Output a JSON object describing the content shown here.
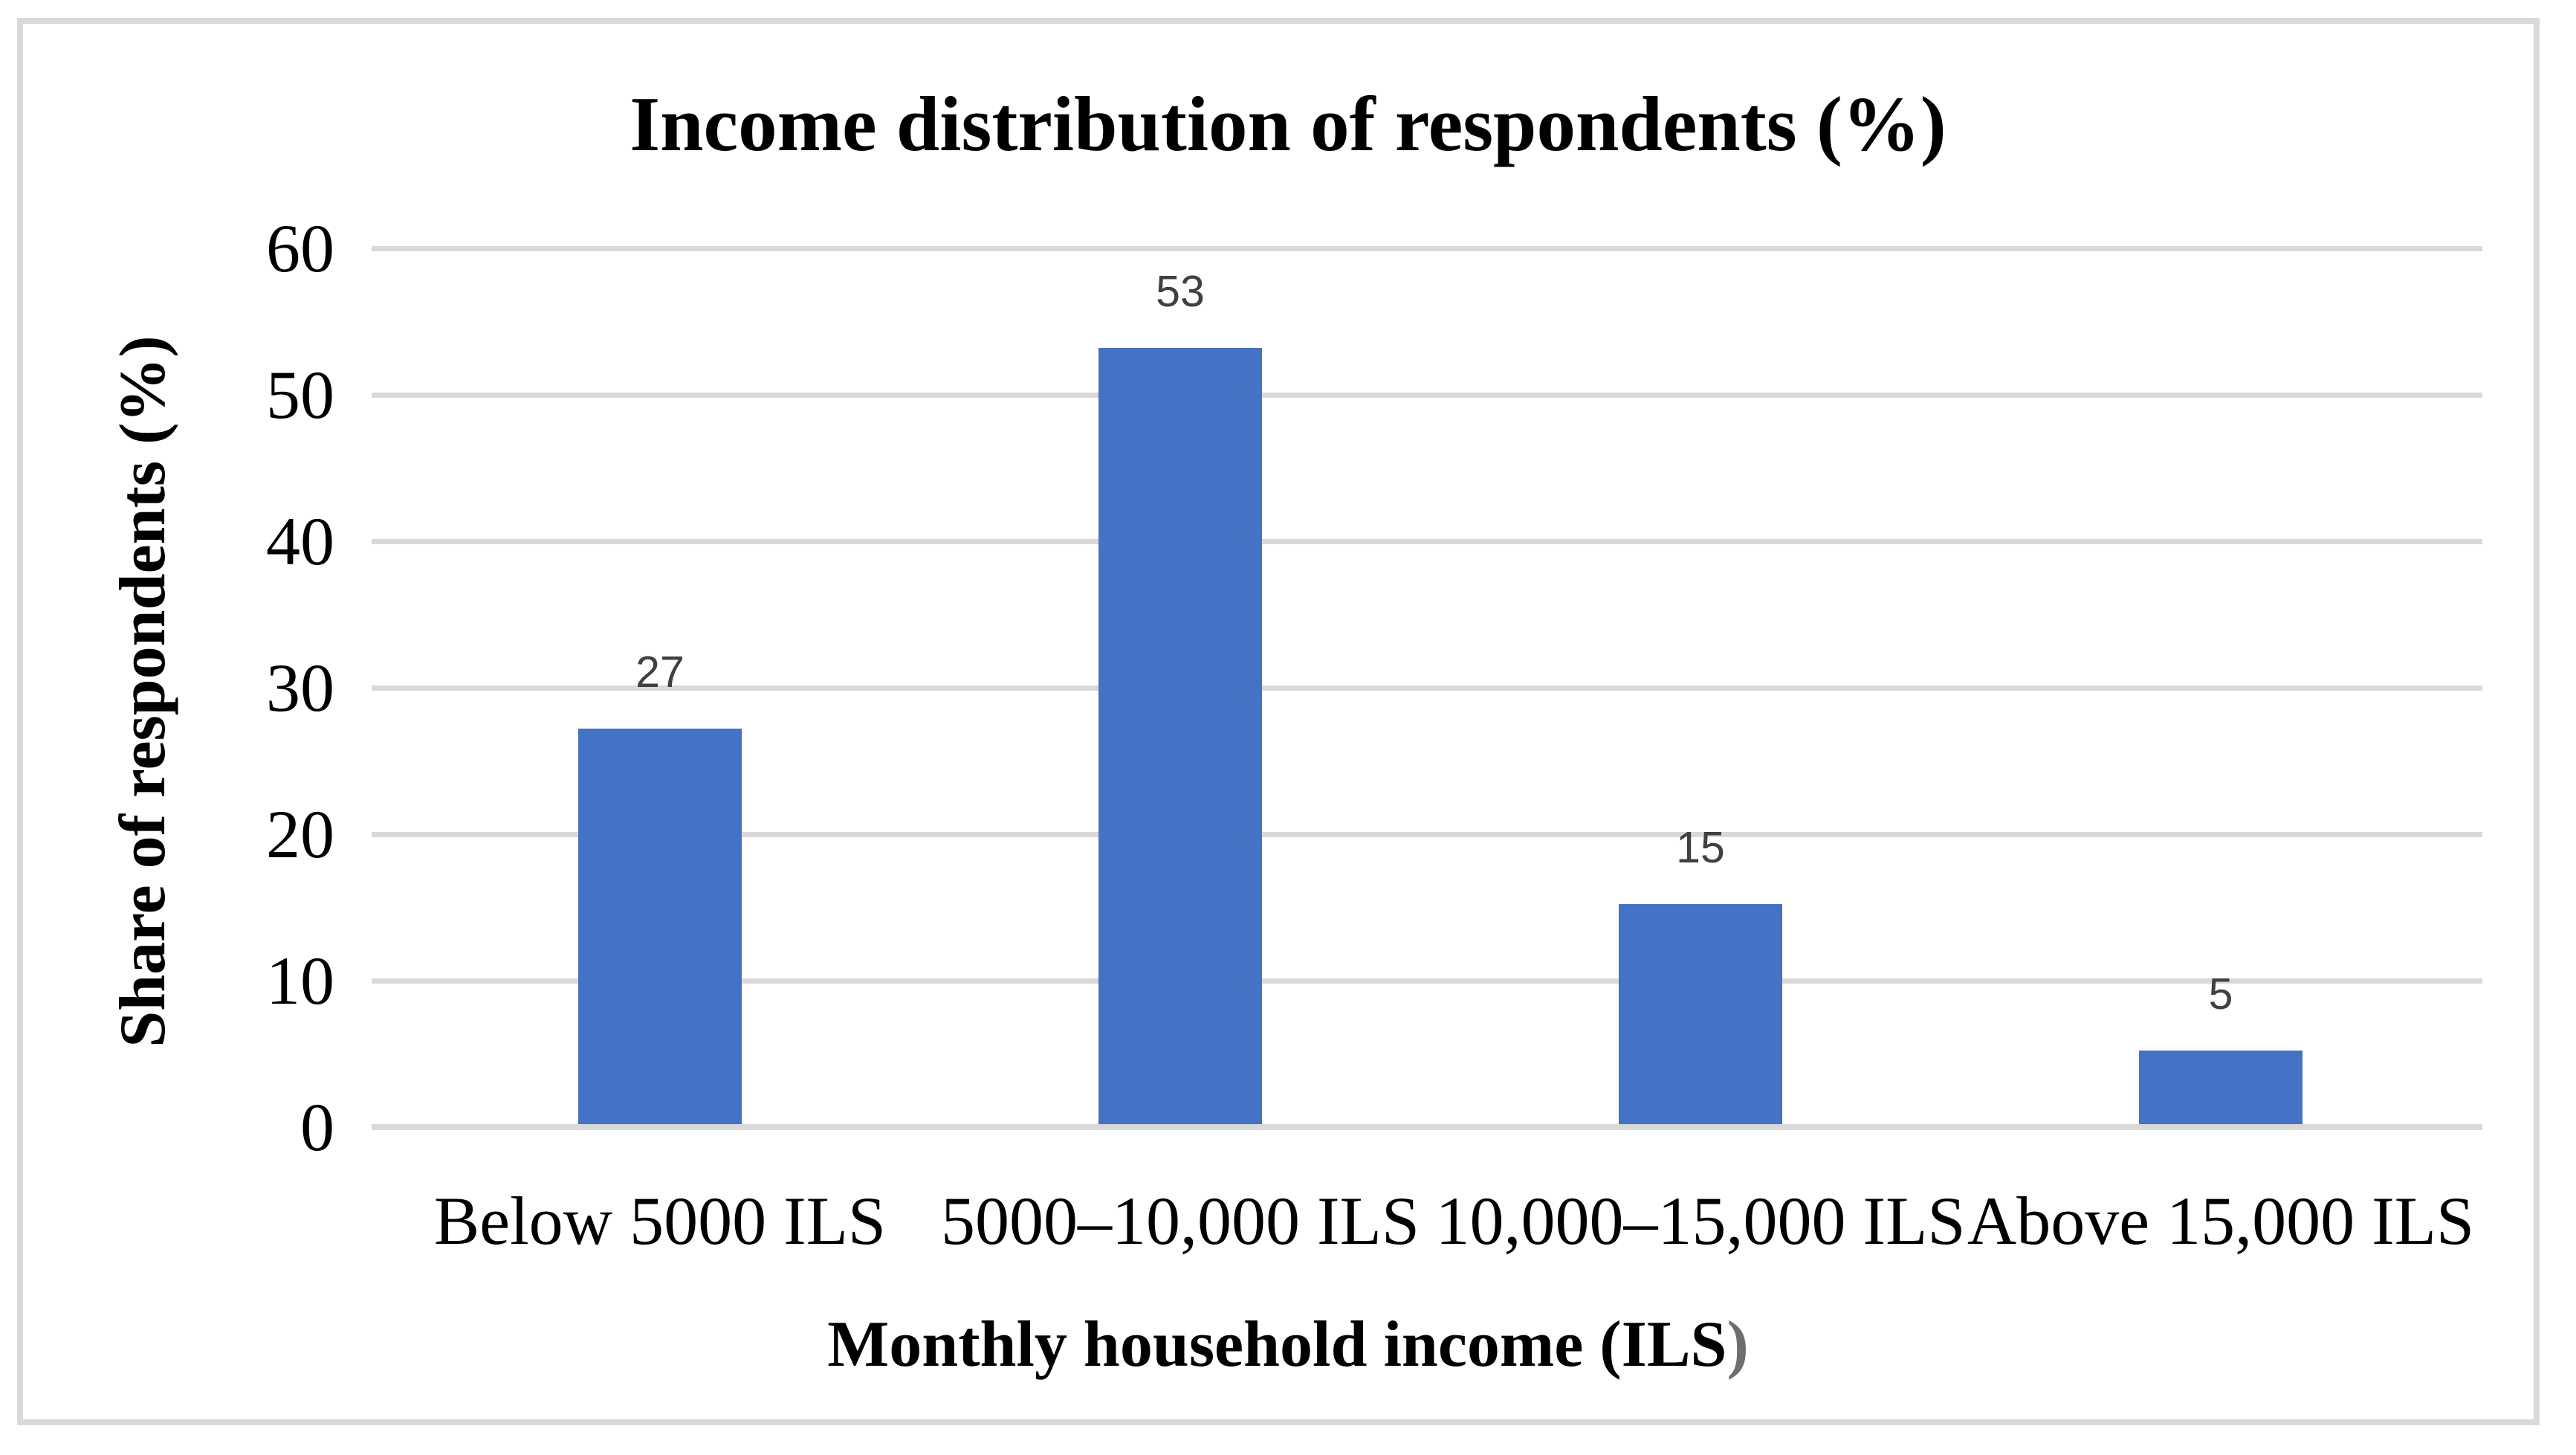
{
  "chart_data": {
    "type": "bar",
    "title": "Income distribution of respondents (%)",
    "categories": [
      "Below 5000 ILS",
      "5000–10,000 ILS",
      "10,000–15,000 ILS",
      "Above 15,000 ILS"
    ],
    "values": [
      27,
      53,
      15,
      5
    ],
    "data_labels": [
      "27",
      "53",
      "15",
      "5"
    ],
    "xlabel": "Monthly household income (ILS)",
    "xlabel_black_part": "Monthly household income (ILS",
    "xlabel_gray_part": ")",
    "ylabel": "Share of respondents (%)",
    "y_ticks": [
      0,
      10,
      20,
      30,
      40,
      50,
      60
    ],
    "ylim": [
      0,
      60
    ],
    "grid": "horizontal gridlines at every 10",
    "legend": "none",
    "colors": {
      "bar_fill": "#4472C4",
      "gridline": "#D9D9D9",
      "axis_line": "#D9D9D9",
      "data_label_text": "#404040",
      "axis_text": "#000000",
      "frame_border": "#D9D9D9",
      "xlabel_paren": "#6E6E6E",
      "background": "#FFFFFF"
    }
  }
}
